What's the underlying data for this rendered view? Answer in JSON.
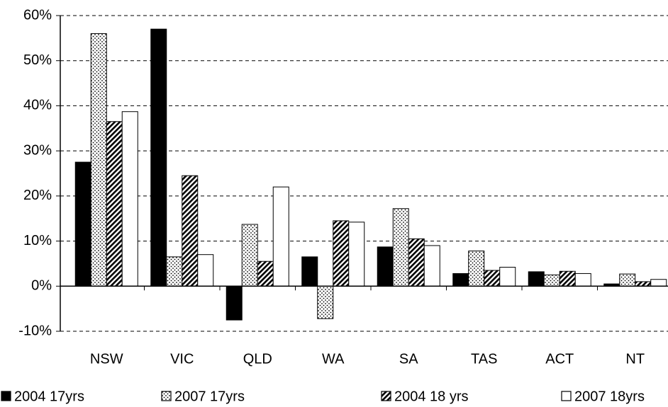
{
  "chart_data": {
    "type": "bar",
    "categories": [
      "NSW",
      "VIC",
      "QLD",
      "WA",
      "SA",
      "TAS",
      "ACT",
      "NT"
    ],
    "series": [
      {
        "name": "2004 17yrs",
        "color": "#000000",
        "pattern": "solid",
        "values": [
          27.5,
          57,
          -7.5,
          6.5,
          8.7,
          2.8,
          3.2,
          0.5
        ]
      },
      {
        "name": "2007 17yrs",
        "color": "#ffffff",
        "pattern": "dots",
        "values": [
          56,
          6.5,
          13.7,
          -7.2,
          17.2,
          7.8,
          2.5,
          2.7
        ]
      },
      {
        "name": "2004 18 yrs",
        "color": "#ffffff",
        "pattern": "hatch",
        "values": [
          36.5,
          24.5,
          5.5,
          14.5,
          10.5,
          3.5,
          3.3,
          1
        ]
      },
      {
        "name": "2007 18yrs",
        "color": "#ffffff",
        "pattern": "none",
        "values": [
          38.7,
          7,
          22,
          14.2,
          9,
          4.2,
          2.8,
          1.5
        ]
      }
    ],
    "ylim": [
      -10,
      60
    ],
    "yticks": [
      {
        "value": -10,
        "label": "-10%"
      },
      {
        "value": 0,
        "label": "0%"
      },
      {
        "value": 10,
        "label": "10%"
      },
      {
        "value": 20,
        "label": "20%"
      },
      {
        "value": 30,
        "label": "30%"
      },
      {
        "value": 40,
        "label": "40%"
      },
      {
        "value": 50,
        "label": "50%"
      },
      {
        "value": 60,
        "label": "60%"
      }
    ],
    "grid": true,
    "legend": "bottom"
  }
}
